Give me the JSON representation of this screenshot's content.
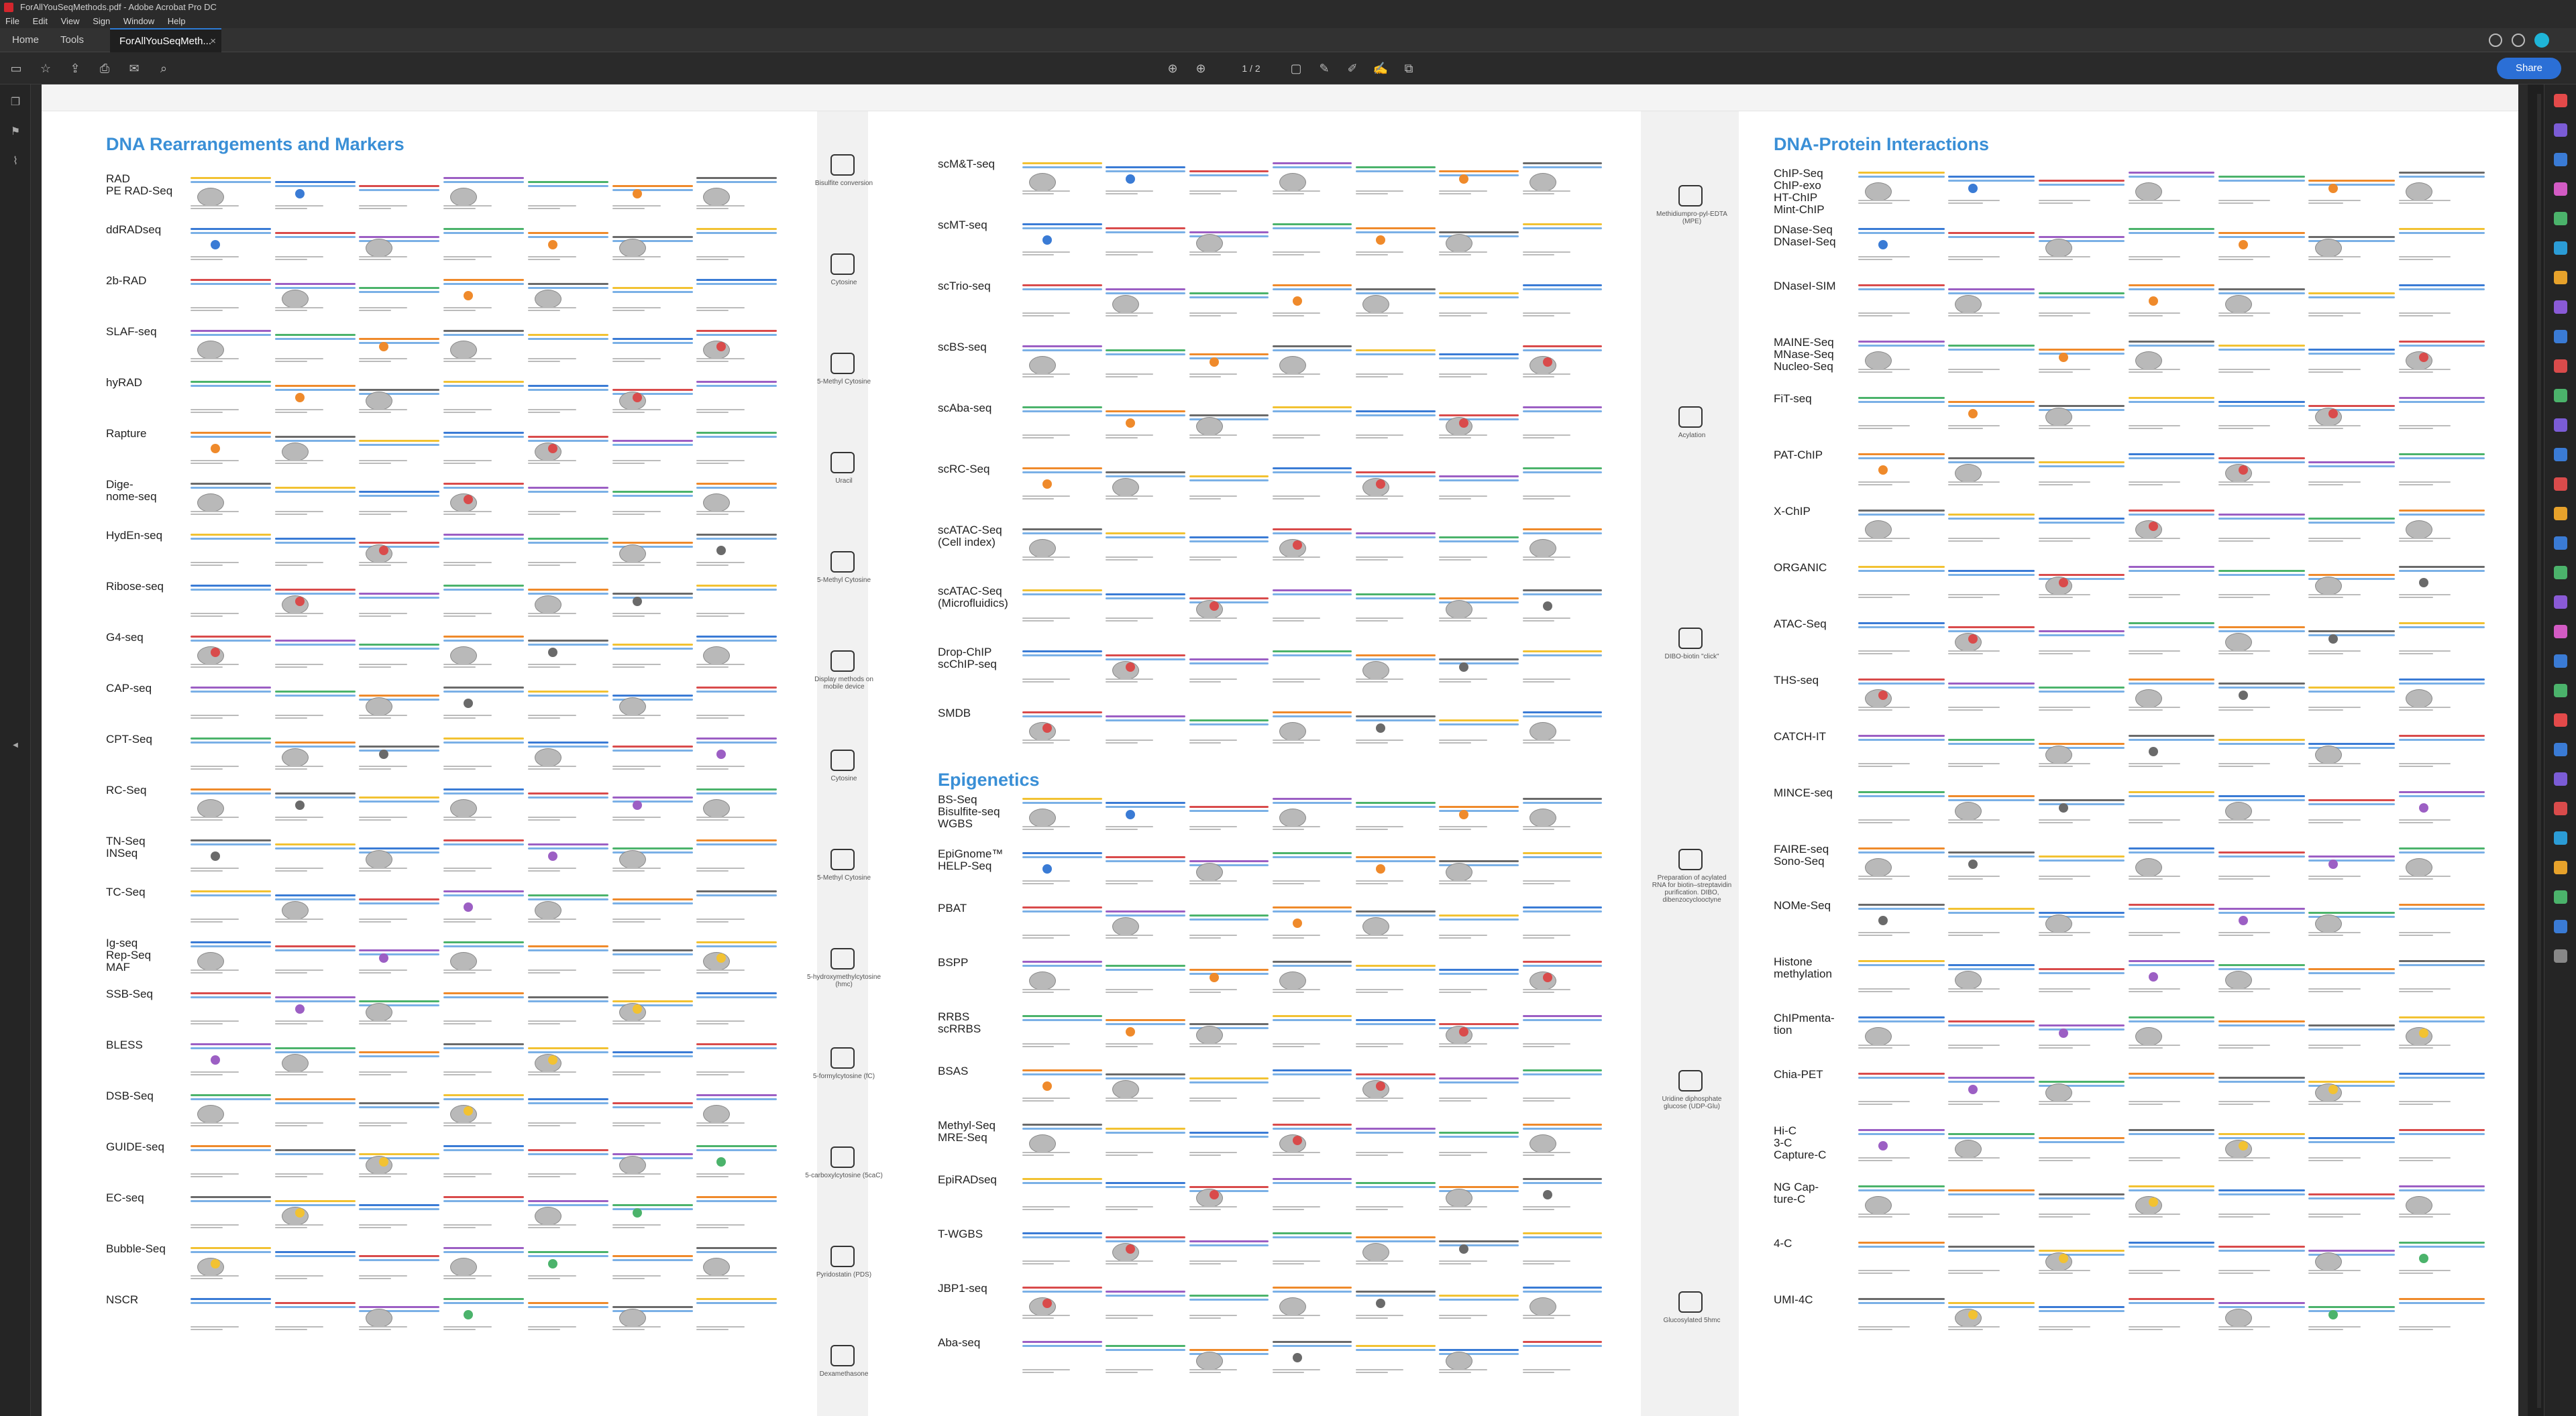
{
  "window": {
    "title": "ForAllYouSeqMethods.pdf - Adobe Acrobat Pro DC",
    "menu": [
      "File",
      "Edit",
      "View",
      "Sign",
      "Window",
      "Help"
    ]
  },
  "tabs": {
    "home": "Home",
    "tools": "Tools",
    "doc": "ForAllYouSeqMeth..."
  },
  "toolbar": {
    "page_current": "1",
    "page_sep": "/",
    "page_total": "2",
    "share": "Share"
  },
  "document": {
    "sections": {
      "dna_rearr": "DNA Rearrangements and Markers",
      "dna_protein": "DNA-Protein Interactions",
      "epigenetics": "Epigenetics"
    },
    "col1_methods": [
      "RAD\nPE RAD-Seq",
      "ddRADseq",
      "2b-RAD",
      "SLAF-seq",
      "hyRAD",
      "Rapture",
      "Dige-\nnome-seq",
      "HydEn-seq",
      "Ribose-seq",
      "G4-seq",
      "CAP-seq",
      "CPT-Seq",
      "RC-Seq",
      "TN-Seq\nINSeq",
      "TC-Seq",
      "Ig-seq\nRep-Seq\nMAF",
      "SSB-Seq",
      "BLESS",
      "DSB-Seq",
      "GUIDE-seq",
      "EC-seq",
      "Bubble-Seq",
      "NSCR"
    ],
    "col2_methods": [
      "scM&T-seq",
      "scMT-seq",
      "scTrio-seq",
      "scBS-seq",
      "scAba-seq",
      "scRC-Seq",
      "scATAC-Seq\n(Cell index)",
      "scATAC-Seq\n(Microfluidics)",
      "Drop-ChIP\nscChIP-seq",
      "SMDB"
    ],
    "col2_epi_methods": [
      "BS-Seq\nBisulfite-seq\nWGBS",
      "EpiGnome™\nHELP-Seq",
      "PBAT",
      "BSPP",
      "RRBS\nscRRBS",
      "BSAS",
      "Methyl-Seq\nMRE-Seq",
      "EpiRADseq",
      "T-WGBS",
      "JBP1-seq",
      "Aba-seq"
    ],
    "col3_methods": [
      "ChIP-Seq\nChIP-exo\nHT-ChIP\nMint-ChIP",
      "DNase-Seq\nDNaseI-Seq",
      "DNaseI-SIM",
      "MAINE-Seq\nMNase-Seq\nNucleo-Seq",
      "FiT-seq",
      "PAT-ChIP",
      "X-ChIP",
      "ORGANIC",
      "ATAC-Seq",
      "THS-seq",
      "CATCH-IT",
      "MINCE-seq",
      "FAIRE-seq\nSono-Seq",
      "NOMe-Seq",
      "Histone\nmethylation",
      "ChIPmenta-\ntion",
      "Chia-PET",
      "Hi-C\n3-C\nCapture-C",
      "NG Cap-\nture-C",
      "4-C",
      "UMI-4C"
    ],
    "side_left_labels": [
      "Bisulfite conversion",
      "Cytosine",
      "5-Methyl Cytosine",
      "Uracil",
      "5-Methyl Cytosine",
      "Display methods on mobile device",
      "Cytosine",
      "5-Methyl Cytosine",
      "5-hydroxymethylcytosine (hmc)",
      "5-formylcytosine (fC)",
      "5-carboxylcytosine (5caC)",
      "Pyridostatin (PDS)",
      "Dexamethasone"
    ],
    "side_right_labels": [
      "Methidiumpro-pyl-EDTA (MPE)",
      "Acylation",
      "DIBO-biotin \"click\"",
      "Preparation of acylated RNA for biotin–streptavidin purification. DIBO, dibenzocyclooctyne",
      "Uridine diphosphate glucose (UDP-Glu)",
      "Glucosylated 5hmc"
    ]
  }
}
